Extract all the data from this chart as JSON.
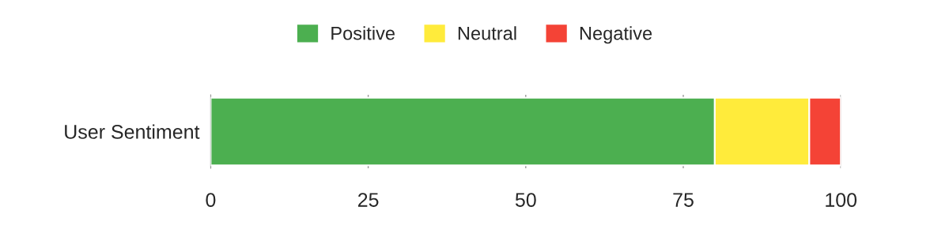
{
  "chart_data": {
    "type": "bar",
    "orientation": "horizontal",
    "stacked": true,
    "categories": [
      "User Sentiment"
    ],
    "series": [
      {
        "name": "Positive",
        "color": "#4caf50",
        "values": [
          80
        ]
      },
      {
        "name": "Neutral",
        "color": "#ffeb3b",
        "values": [
          15
        ]
      },
      {
        "name": "Negative",
        "color": "#f44336",
        "values": [
          5
        ]
      }
    ],
    "xlim": [
      0,
      100
    ],
    "xticks": [
      0,
      25,
      50,
      75,
      100
    ],
    "grid": "x",
    "legend": "top"
  }
}
